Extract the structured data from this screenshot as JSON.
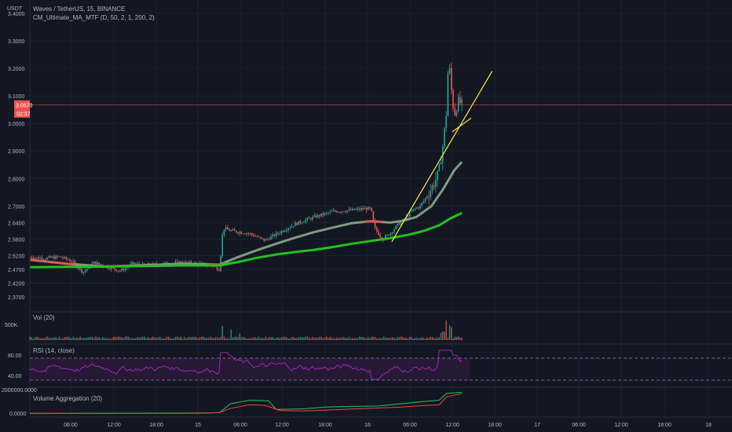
{
  "chart_data": [
    {
      "type": "candlestick",
      "title": "Waves / TetherUS, 15, BINANCE",
      "indicator": "CM_Ultimate_MA_MTF (D, 50, 2, 1, 200, 2)",
      "currency": "USDT",
      "last_price": "3.0670",
      "countdown": "02:37",
      "ylim": [
        2.33,
        3.42
      ],
      "y_ticks": [
        "3.4000",
        "3.3000",
        "3.2000",
        "3.1000",
        "3.0000",
        "2.9000",
        "2.8000",
        "2.7000",
        "2.6400",
        "2.5800",
        "2.5200",
        "2.4700",
        "2.4200",
        "2.3700"
      ],
      "x_ticks": [
        "06:00",
        "12:00",
        "18:00",
        "15",
        "06:00",
        "12:00",
        "18:00",
        "16",
        "06:00",
        "12:00",
        "18:00",
        "17",
        "06:00",
        "12:00",
        "18:00",
        "18"
      ],
      "price_path": [
        [
          0,
          2.515
        ],
        [
          4,
          2.51
        ],
        [
          8,
          2.515
        ],
        [
          11,
          2.5
        ],
        [
          14,
          2.46
        ],
        [
          17,
          2.495
        ],
        [
          20,
          2.48
        ],
        [
          24,
          2.465
        ],
        [
          27,
          2.49
        ],
        [
          30,
          2.485
        ],
        [
          35,
          2.49
        ],
        [
          40,
          2.495
        ],
        [
          45,
          2.49
        ],
        [
          48,
          2.485
        ],
        [
          50,
          2.47
        ],
        [
          51,
          2.62
        ],
        [
          53,
          2.61
        ],
        [
          58,
          2.6
        ],
        [
          62,
          2.575
        ],
        [
          66,
          2.605
        ],
        [
          70,
          2.635
        ],
        [
          75,
          2.66
        ],
        [
          80,
          2.68
        ],
        [
          85,
          2.685
        ],
        [
          88,
          2.69
        ],
        [
          90,
          2.69
        ],
        [
          91,
          2.62
        ],
        [
          93,
          2.58
        ],
        [
          95,
          2.6
        ],
        [
          97,
          2.63
        ],
        [
          99,
          2.655
        ],
        [
          101,
          2.685
        ],
        [
          103,
          2.7
        ],
        [
          105,
          2.74
        ],
        [
          107,
          2.79
        ],
        [
          108,
          2.83
        ],
        [
          109,
          2.92
        ],
        [
          110,
          3.05
        ],
        [
          110.5,
          3.25
        ],
        [
          111,
          3.15
        ],
        [
          112,
          3.03
        ],
        [
          113,
          3.08
        ],
        [
          114,
          3.07
        ]
      ],
      "ema_fast_path": [
        [
          0,
          2.505
        ],
        [
          10,
          2.49
        ],
        [
          20,
          2.48
        ],
        [
          30,
          2.485
        ],
        [
          40,
          2.49
        ],
        [
          50,
          2.487
        ],
        [
          55,
          2.515
        ],
        [
          60,
          2.54
        ],
        [
          65,
          2.563
        ],
        [
          70,
          2.585
        ],
        [
          75,
          2.605
        ],
        [
          80,
          2.622
        ],
        [
          85,
          2.638
        ],
        [
          90,
          2.645
        ],
        [
          95,
          2.64
        ],
        [
          98,
          2.645
        ],
        [
          102,
          2.66
        ],
        [
          106,
          2.7
        ],
        [
          109,
          2.76
        ],
        [
          112,
          2.83
        ],
        [
          114,
          2.86
        ]
      ],
      "ema_slow_path": [
        [
          0,
          2.478
        ],
        [
          10,
          2.479
        ],
        [
          20,
          2.48
        ],
        [
          30,
          2.482
        ],
        [
          40,
          2.484
        ],
        [
          50,
          2.484
        ],
        [
          55,
          2.497
        ],
        [
          60,
          2.512
        ],
        [
          65,
          2.524
        ],
        [
          70,
          2.533
        ],
        [
          75,
          2.541
        ],
        [
          80,
          2.551
        ],
        [
          85,
          2.563
        ],
        [
          90,
          2.573
        ],
        [
          95,
          2.583
        ],
        [
          100,
          2.596
        ],
        [
          104,
          2.61
        ],
        [
          108,
          2.63
        ],
        [
          111,
          2.655
        ],
        [
          114,
          2.675
        ]
      ],
      "ema_fast_red_segments": [
        [
          0,
          12
        ],
        [
          20,
          27
        ],
        [
          47,
          51
        ],
        [
          88,
          93
        ]
      ],
      "trendlines": [
        {
          "start": [
            95.5,
            2.57
          ],
          "end": [
            122,
            3.19
          ]
        },
        {
          "start": [
            111.5,
            2.97
          ],
          "end": [
            116.5,
            3.02
          ]
        }
      ]
    },
    {
      "type": "bar",
      "title": "Vol (20)",
      "y_ticks": [
        "500K"
      ],
      "spikes": [
        [
          51,
          420000
        ],
        [
          53,
          300000
        ],
        [
          55,
          180000
        ],
        [
          91,
          160000
        ],
        [
          109,
          220000
        ],
        [
          110,
          500000
        ],
        [
          111,
          380000
        ]
      ]
    },
    {
      "type": "line",
      "title": "RSI (14, close)",
      "y_ticks": [
        "80.00",
        "40.00"
      ],
      "bands": [
        70,
        30
      ],
      "ylim": [
        20,
        90
      ]
    },
    {
      "type": "line",
      "title": "Volume Aggregation (20)",
      "y_ticks": [
        "2000000.0000",
        "0.0000"
      ],
      "series": [
        {
          "color": "#22c55e",
          "path": [
            [
              0,
              0.02
            ],
            [
              20,
              0.03
            ],
            [
              45,
              0.04
            ],
            [
              50,
              0.05
            ],
            [
              53,
              0.45
            ],
            [
              58,
              0.6
            ],
            [
              63,
              0.58
            ],
            [
              65,
              0.2
            ],
            [
              72,
              0.22
            ],
            [
              78,
              0.3
            ],
            [
              85,
              0.33
            ],
            [
              92,
              0.35
            ],
            [
              98,
              0.45
            ],
            [
              104,
              0.55
            ],
            [
              108,
              0.6
            ],
            [
              110,
              0.9
            ],
            [
              114,
              0.95
            ]
          ]
        },
        {
          "color": "#ef4444",
          "path": [
            [
              0,
              0.03
            ],
            [
              20,
              0.02
            ],
            [
              45,
              0.03
            ],
            [
              50,
              0.06
            ],
            [
              53,
              0.25
            ],
            [
              58,
              0.4
            ],
            [
              62,
              0.38
            ],
            [
              66,
              0.15
            ],
            [
              72,
              0.13
            ],
            [
              80,
              0.18
            ],
            [
              90,
              0.25
            ],
            [
              98,
              0.3
            ],
            [
              104,
              0.37
            ],
            [
              108,
              0.4
            ],
            [
              110,
              0.75
            ],
            [
              114,
              0.9
            ]
          ]
        }
      ]
    }
  ],
  "colors": {
    "background": "#131722",
    "grid": "#1e222d",
    "up": "#26a69a",
    "down": "#ef5350",
    "ema_fast": "#7e9c82",
    "ema_slow": "#22c022",
    "trendline": "#ffeb3b",
    "rsi": "#9c27b0",
    "price_label": "#ef5350"
  }
}
